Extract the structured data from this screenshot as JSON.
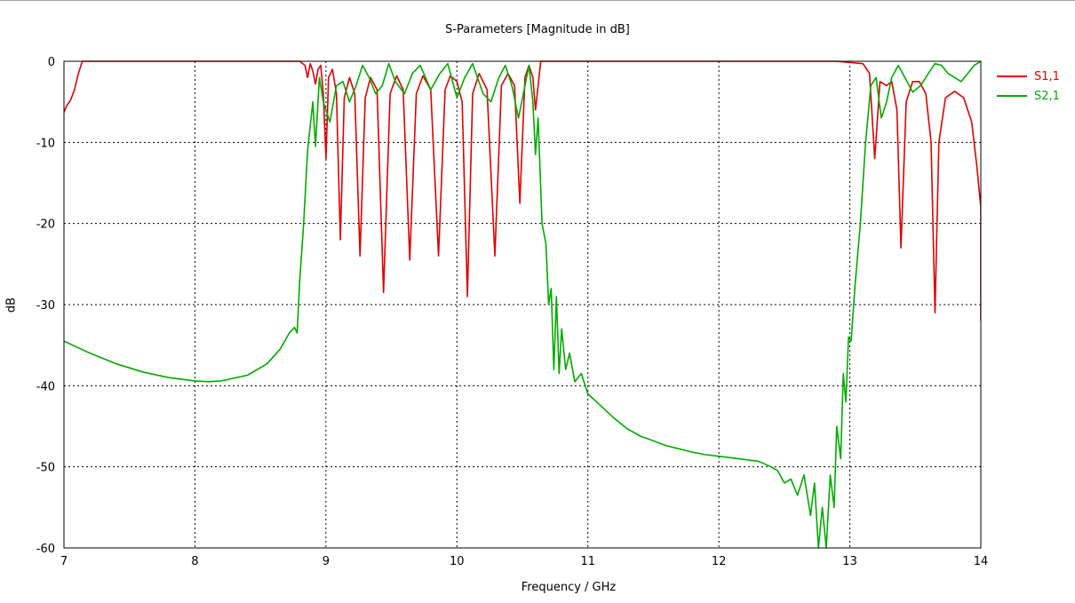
{
  "chart_data": {
    "type": "line",
    "title": "S-Parameters [Magnitude in dB]",
    "xlabel": "Frequency / GHz",
    "ylabel": "dB",
    "xlim": [
      7,
      14
    ],
    "ylim": [
      -60,
      0
    ],
    "x_ticks": [
      "7",
      "8",
      "9",
      "10",
      "11",
      "12",
      "13",
      "14"
    ],
    "y_ticks": [
      "0",
      "-10",
      "-20",
      "-30",
      "-40",
      "-50",
      "-60"
    ],
    "grid": true,
    "legend_position": "right",
    "series": [
      {
        "name": "S1,1",
        "color": "#e00000",
        "points": [
          [
            7.0,
            -6.3
          ],
          [
            7.02,
            -5.5
          ],
          [
            7.05,
            -4.8
          ],
          [
            7.08,
            -3.5
          ],
          [
            7.11,
            -1.5
          ],
          [
            7.14,
            0
          ],
          [
            7.2,
            0
          ],
          [
            7.5,
            0
          ],
          [
            8.0,
            0
          ],
          [
            8.5,
            0
          ],
          [
            8.8,
            0
          ],
          [
            8.84,
            -0.5
          ],
          [
            8.86,
            -2.0
          ],
          [
            8.88,
            -0.3
          ],
          [
            8.9,
            -1.2
          ],
          [
            8.92,
            -2.8
          ],
          [
            8.94,
            -1.0
          ],
          [
            8.96,
            -0.5
          ],
          [
            8.98,
            -4.0
          ],
          [
            9.0,
            -12.0
          ],
          [
            9.02,
            -2.0
          ],
          [
            9.05,
            -1.0
          ],
          [
            9.08,
            -4.0
          ],
          [
            9.11,
            -22.0
          ],
          [
            9.14,
            -4.5
          ],
          [
            9.18,
            -2.0
          ],
          [
            9.22,
            -4.0
          ],
          [
            9.26,
            -24.0
          ],
          [
            9.3,
            -4.5
          ],
          [
            9.34,
            -2.0
          ],
          [
            9.39,
            -3.5
          ],
          [
            9.44,
            -28.5
          ],
          [
            9.49,
            -4.0
          ],
          [
            9.54,
            -1.8
          ],
          [
            9.59,
            -3.5
          ],
          [
            9.64,
            -24.5
          ],
          [
            9.69,
            -4.0
          ],
          [
            9.74,
            -1.8
          ],
          [
            9.8,
            -3.5
          ],
          [
            9.86,
            -24.0
          ],
          [
            9.91,
            -3.5
          ],
          [
            9.95,
            -1.8
          ],
          [
            10.0,
            -2.5
          ],
          [
            10.04,
            -5.0
          ],
          [
            10.08,
            -29.0
          ],
          [
            10.12,
            -4.0
          ],
          [
            10.17,
            -1.5
          ],
          [
            10.23,
            -3.5
          ],
          [
            10.29,
            -24.0
          ],
          [
            10.34,
            -3.0
          ],
          [
            10.39,
            -1.5
          ],
          [
            10.44,
            -3.0
          ],
          [
            10.48,
            -17.5
          ],
          [
            10.52,
            -2.0
          ],
          [
            10.55,
            -0.5
          ],
          [
            10.58,
            -2.0
          ],
          [
            10.6,
            -6.0
          ],
          [
            10.62,
            -3.0
          ],
          [
            10.64,
            0
          ],
          [
            10.7,
            0
          ],
          [
            11.0,
            0
          ],
          [
            11.5,
            0
          ],
          [
            12.0,
            0
          ],
          [
            12.5,
            0
          ],
          [
            12.9,
            0
          ],
          [
            13.1,
            -0.3
          ],
          [
            13.15,
            -1.5
          ],
          [
            13.19,
            -12.0
          ],
          [
            13.23,
            -2.5
          ],
          [
            13.28,
            -3.0
          ],
          [
            13.32,
            -2.5
          ],
          [
            13.36,
            -6.0
          ],
          [
            13.39,
            -23.0
          ],
          [
            13.43,
            -5.0
          ],
          [
            13.48,
            -2.5
          ],
          [
            13.53,
            -2.5
          ],
          [
            13.58,
            -4.0
          ],
          [
            13.62,
            -10.0
          ],
          [
            13.65,
            -31.0
          ],
          [
            13.68,
            -10.0
          ],
          [
            13.73,
            -4.5
          ],
          [
            13.8,
            -3.7
          ],
          [
            13.87,
            -4.5
          ],
          [
            13.93,
            -7.5
          ],
          [
            13.97,
            -13.0
          ],
          [
            14.0,
            -18.0
          ],
          [
            14.0,
            -32.0
          ]
        ]
      },
      {
        "name": "S2,1",
        "color": "#00aa00",
        "points": [
          [
            7.0,
            -34.5
          ],
          [
            7.2,
            -36.0
          ],
          [
            7.4,
            -37.3
          ],
          [
            7.6,
            -38.3
          ],
          [
            7.8,
            -39.0
          ],
          [
            8.0,
            -39.4
          ],
          [
            8.1,
            -39.5
          ],
          [
            8.2,
            -39.4
          ],
          [
            8.4,
            -38.7
          ],
          [
            8.55,
            -37.3
          ],
          [
            8.65,
            -35.5
          ],
          [
            8.72,
            -33.5
          ],
          [
            8.76,
            -32.8
          ],
          [
            8.78,
            -33.5
          ],
          [
            8.8,
            -27.0
          ],
          [
            8.83,
            -20.0
          ],
          [
            8.86,
            -11.0
          ],
          [
            8.9,
            -5.0
          ],
          [
            8.92,
            -10.5
          ],
          [
            8.95,
            -2.0
          ],
          [
            8.98,
            -5.0
          ],
          [
            9.03,
            -7.5
          ],
          [
            9.08,
            -3.0
          ],
          [
            9.13,
            -2.5
          ],
          [
            9.18,
            -5.0
          ],
          [
            9.23,
            -3.0
          ],
          [
            9.28,
            -0.5
          ],
          [
            9.33,
            -2.0
          ],
          [
            9.38,
            -4.0
          ],
          [
            9.43,
            -3.0
          ],
          [
            9.48,
            -0.3
          ],
          [
            9.53,
            -2.5
          ],
          [
            9.6,
            -4.0
          ],
          [
            9.66,
            -1.5
          ],
          [
            9.72,
            -0.5
          ],
          [
            9.8,
            -3.5
          ],
          [
            9.87,
            -1.5
          ],
          [
            9.93,
            -0.3
          ],
          [
            10.0,
            -4.5
          ],
          [
            10.06,
            -2.0
          ],
          [
            10.12,
            -0.3
          ],
          [
            10.2,
            -4.0
          ],
          [
            10.26,
            -5.0
          ],
          [
            10.32,
            -2.0
          ],
          [
            10.37,
            -0.5
          ],
          [
            10.42,
            -3.0
          ],
          [
            10.47,
            -7.0
          ],
          [
            10.52,
            -3.0
          ],
          [
            10.55,
            -0.5
          ],
          [
            10.58,
            -5.0
          ],
          [
            10.6,
            -11.5
          ],
          [
            10.62,
            -7.0
          ],
          [
            10.65,
            -20.0
          ],
          [
            10.68,
            -22.5
          ],
          [
            10.7,
            -30.0
          ],
          [
            10.72,
            -28.0
          ],
          [
            10.74,
            -38.0
          ],
          [
            10.76,
            -29.0
          ],
          [
            10.78,
            -38.5
          ],
          [
            10.8,
            -33.0
          ],
          [
            10.83,
            -38.0
          ],
          [
            10.86,
            -36.0
          ],
          [
            10.9,
            -39.5
          ],
          [
            10.95,
            -38.5
          ],
          [
            11.0,
            -41.0
          ],
          [
            11.1,
            -42.5
          ],
          [
            11.2,
            -44.0
          ],
          [
            11.3,
            -45.3
          ],
          [
            11.4,
            -46.2
          ],
          [
            11.5,
            -46.8
          ],
          [
            11.6,
            -47.4
          ],
          [
            11.7,
            -47.8
          ],
          [
            11.8,
            -48.2
          ],
          [
            11.9,
            -48.5
          ],
          [
            12.0,
            -48.7
          ],
          [
            12.1,
            -48.9
          ],
          [
            12.2,
            -49.1
          ],
          [
            12.3,
            -49.3
          ],
          [
            12.4,
            -50.0
          ],
          [
            12.45,
            -50.5
          ],
          [
            12.5,
            -52.0
          ],
          [
            12.55,
            -51.5
          ],
          [
            12.6,
            -53.5
          ],
          [
            12.65,
            -51.0
          ],
          [
            12.7,
            -56.0
          ],
          [
            12.73,
            -52.0
          ],
          [
            12.76,
            -60.0
          ],
          [
            12.79,
            -55.0
          ],
          [
            12.82,
            -60.0
          ],
          [
            12.85,
            -51.0
          ],
          [
            12.88,
            -55.0
          ],
          [
            12.9,
            -45.0
          ],
          [
            12.93,
            -49.0
          ],
          [
            12.95,
            -38.5
          ],
          [
            12.97,
            -42.0
          ],
          [
            12.99,
            -34.0
          ],
          [
            13.01,
            -34.5
          ],
          [
            13.04,
            -27.5
          ],
          [
            13.08,
            -20.0
          ],
          [
            13.12,
            -10.0
          ],
          [
            13.16,
            -3.0
          ],
          [
            13.2,
            -2.0
          ],
          [
            13.24,
            -7.0
          ],
          [
            13.28,
            -5.0
          ],
          [
            13.32,
            -2.0
          ],
          [
            13.37,
            -0.5
          ],
          [
            13.42,
            -2.0
          ],
          [
            13.48,
            -3.8
          ],
          [
            13.54,
            -3.0
          ],
          [
            13.6,
            -1.5
          ],
          [
            13.65,
            -0.3
          ],
          [
            13.7,
            -0.5
          ],
          [
            13.75,
            -1.5
          ],
          [
            13.8,
            -2.0
          ],
          [
            13.85,
            -2.5
          ],
          [
            13.9,
            -1.5
          ],
          [
            13.95,
            -0.5
          ],
          [
            14.0,
            0
          ]
        ]
      }
    ]
  }
}
